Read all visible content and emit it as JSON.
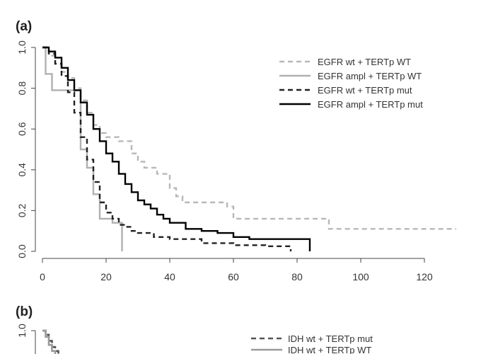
{
  "panels": {
    "a_label": "(a)",
    "b_label": "(b)"
  },
  "chart_data": [
    {
      "panel": "(a)",
      "type": "line",
      "step": true,
      "xlim": [
        0,
        130
      ],
      "ylim": [
        0,
        1
      ],
      "xticks": [
        "0",
        "20",
        "40",
        "60",
        "80",
        "100",
        "120"
      ],
      "yticks": [
        "0.0",
        "0.2",
        "0.4",
        "0.6",
        "0.8",
        "1.0"
      ],
      "xtick_values": [
        0,
        20,
        40,
        60,
        80,
        100,
        120
      ],
      "ytick_values": [
        0,
        0.2,
        0.4,
        0.6,
        0.8,
        1.0
      ],
      "legend_position": "top-right",
      "series": [
        {
          "name": "EGFR wt + TERTp WT",
          "color": "#b8b8b8",
          "dash": "dashed",
          "x": [
            0,
            2,
            4,
            6,
            8,
            10,
            12,
            14,
            16,
            18,
            20,
            24,
            28,
            30,
            32,
            36,
            40,
            42,
            44,
            58,
            60,
            90,
            130
          ],
          "y": [
            1.0,
            0.96,
            0.92,
            0.88,
            0.85,
            0.8,
            0.74,
            0.68,
            0.62,
            0.58,
            0.56,
            0.54,
            0.48,
            0.44,
            0.41,
            0.38,
            0.31,
            0.27,
            0.24,
            0.22,
            0.16,
            0.11,
            0.11
          ]
        },
        {
          "name": "EGFR ampl + TERTp WT",
          "color": "#b0b0b0",
          "dash": "solid",
          "x": [
            0,
            1,
            3,
            6,
            9,
            12,
            14,
            16,
            18,
            22,
            25
          ],
          "y": [
            1.0,
            0.87,
            0.79,
            0.79,
            0.79,
            0.5,
            0.41,
            0.28,
            0.16,
            0.14,
            0.0
          ]
        },
        {
          "name": "EGFR wt + TERTp mut",
          "color": "#222222",
          "dash": "dashed",
          "x": [
            0,
            2,
            4,
            6,
            8,
            10,
            12,
            14,
            16,
            18,
            20,
            22,
            24,
            26,
            28,
            30,
            35,
            40,
            50,
            60,
            70,
            78
          ],
          "y": [
            1.0,
            0.97,
            0.92,
            0.86,
            0.78,
            0.68,
            0.56,
            0.45,
            0.34,
            0.24,
            0.19,
            0.16,
            0.13,
            0.12,
            0.1,
            0.09,
            0.07,
            0.06,
            0.04,
            0.03,
            0.025,
            0.0
          ]
        },
        {
          "name": "EGFR ampl + TERTp mut",
          "color": "#000000",
          "dash": "solid",
          "x": [
            0,
            2,
            4,
            6,
            8,
            10,
            12,
            14,
            16,
            18,
            20,
            22,
            24,
            26,
            28,
            30,
            32,
            34,
            36,
            38,
            40,
            45,
            50,
            55,
            60,
            65,
            70,
            84
          ],
          "y": [
            1.0,
            0.98,
            0.95,
            0.9,
            0.84,
            0.79,
            0.73,
            0.67,
            0.6,
            0.54,
            0.48,
            0.44,
            0.38,
            0.33,
            0.29,
            0.25,
            0.23,
            0.21,
            0.18,
            0.16,
            0.14,
            0.11,
            0.1,
            0.09,
            0.07,
            0.06,
            0.06,
            0.0
          ]
        }
      ]
    },
    {
      "panel": "(b)",
      "type": "line",
      "step": true,
      "partial": true,
      "xlim": [
        0,
        130
      ],
      "ylim": [
        0,
        1
      ],
      "yticks": [
        "1.0"
      ],
      "ytick_values": [
        1.0
      ],
      "legend_position": "top-right",
      "series": [
        {
          "name": "IDH wt + TERTp mut",
          "color": "#555555",
          "dash": "dashed",
          "x": [
            0,
            1,
            2,
            3,
            4,
            5
          ],
          "y": [
            1.0,
            0.98,
            0.95,
            0.92,
            0.9,
            0.88
          ]
        },
        {
          "name": "IDH wt + TERTp WT",
          "color": "#9a9a9a",
          "dash": "solid",
          "x": [
            0,
            1,
            2,
            3,
            4,
            5
          ],
          "y": [
            1.0,
            0.97,
            0.93,
            0.9,
            0.87,
            0.85
          ]
        }
      ]
    }
  ]
}
